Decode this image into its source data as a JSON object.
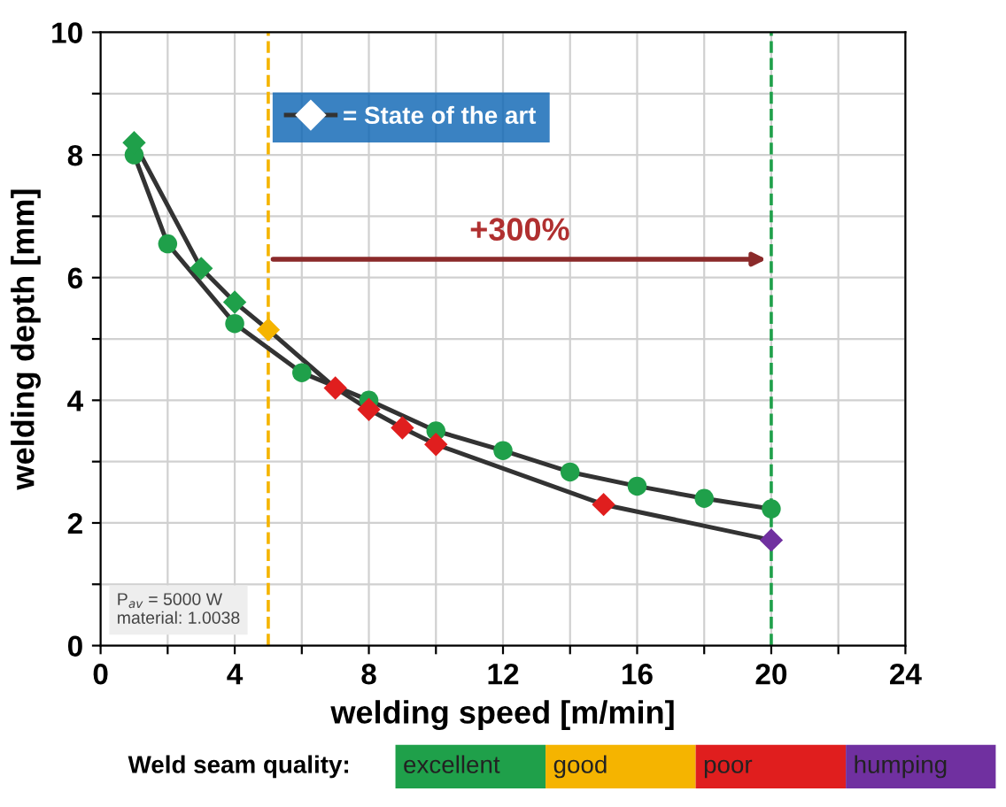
{
  "chart_data": [
    {
      "type": "line",
      "xlabel": "welding speed [m/min]",
      "ylabel": "welding depth [mm]",
      "xlim": [
        0,
        24
      ],
      "ylim": [
        0,
        10
      ],
      "xticks": [
        0,
        {
          "value": 2,
          "label": null
        },
        4,
        {
          "value": 6,
          "label": null
        },
        8,
        {
          "value": 10,
          "label": null
        },
        12,
        {
          "value": 14,
          "label": null
        },
        16,
        {
          "value": 18,
          "label": null
        },
        20,
        {
          "value": 22,
          "label": null
        },
        24
      ],
      "yticks": [
        0,
        {
          "value": 1,
          "label": null
        },
        2,
        {
          "value": 3,
          "label": null
        },
        4,
        {
          "value": 5,
          "label": null
        },
        6,
        {
          "value": 7,
          "label": null
        },
        8,
        {
          "value": 9,
          "label": null
        },
        10
      ],
      "grid": true,
      "legend": "top left",
      "series": [
        {
          "color": "#333333",
          "marker": "circle",
          "x": [
            1,
            2,
            4,
            6,
            8,
            10,
            12,
            14,
            16,
            18,
            20
          ],
          "values": [
            8.0,
            6.55,
            5.25,
            4.45,
            4.0,
            3.5,
            3.18,
            2.83,
            2.6,
            2.4,
            2.23
          ],
          "colors": [
            "#1fa04a",
            "#1fa04a",
            "#1fa04a",
            "#1fa04a",
            "#1fa04a",
            "#1fa04a",
            "#1fa04a",
            "#1fa04a",
            "#1fa04a",
            "#1fa04a",
            "#1fa04a"
          ]
        },
        {
          "name": "= State of the art",
          "color": "#333333",
          "marker": "diamond",
          "x": [
            1,
            3,
            4,
            5,
            7,
            8,
            9,
            10,
            15,
            20
          ],
          "values": [
            8.2,
            6.15,
            5.6,
            5.15,
            4.2,
            3.85,
            3.55,
            3.28,
            2.3,
            1.72
          ],
          "colors": [
            "#1fa04a",
            "#1fa04a",
            "#1fa04a",
            "#f5b400",
            "#e01e1e",
            "#e01e1e",
            "#e01e1e",
            "#e01e1e",
            "#e01e1e",
            "#7030a0"
          ]
        }
      ],
      "ref_lines": [
        {
          "axis": "x",
          "value": 5,
          "color": "#f5b400",
          "line_style": "dashed"
        },
        {
          "axis": "x",
          "value": 20,
          "color": "#1fa04a",
          "line_style": "dashed"
        }
      ],
      "annotations": [
        "+300%",
        "P$_{av}$ = 5000 W\nmaterial: 1.0038"
      ]
    },
    {
      "type": "other",
      "title": "Weld seam quality:",
      "categories": [
        "excellent",
        "good",
        "poor",
        "humping"
      ],
      "colors": [
        "#1fa04a",
        "#f5b400",
        "#e01e1e",
        "#7030a0"
      ]
    }
  ]
}
